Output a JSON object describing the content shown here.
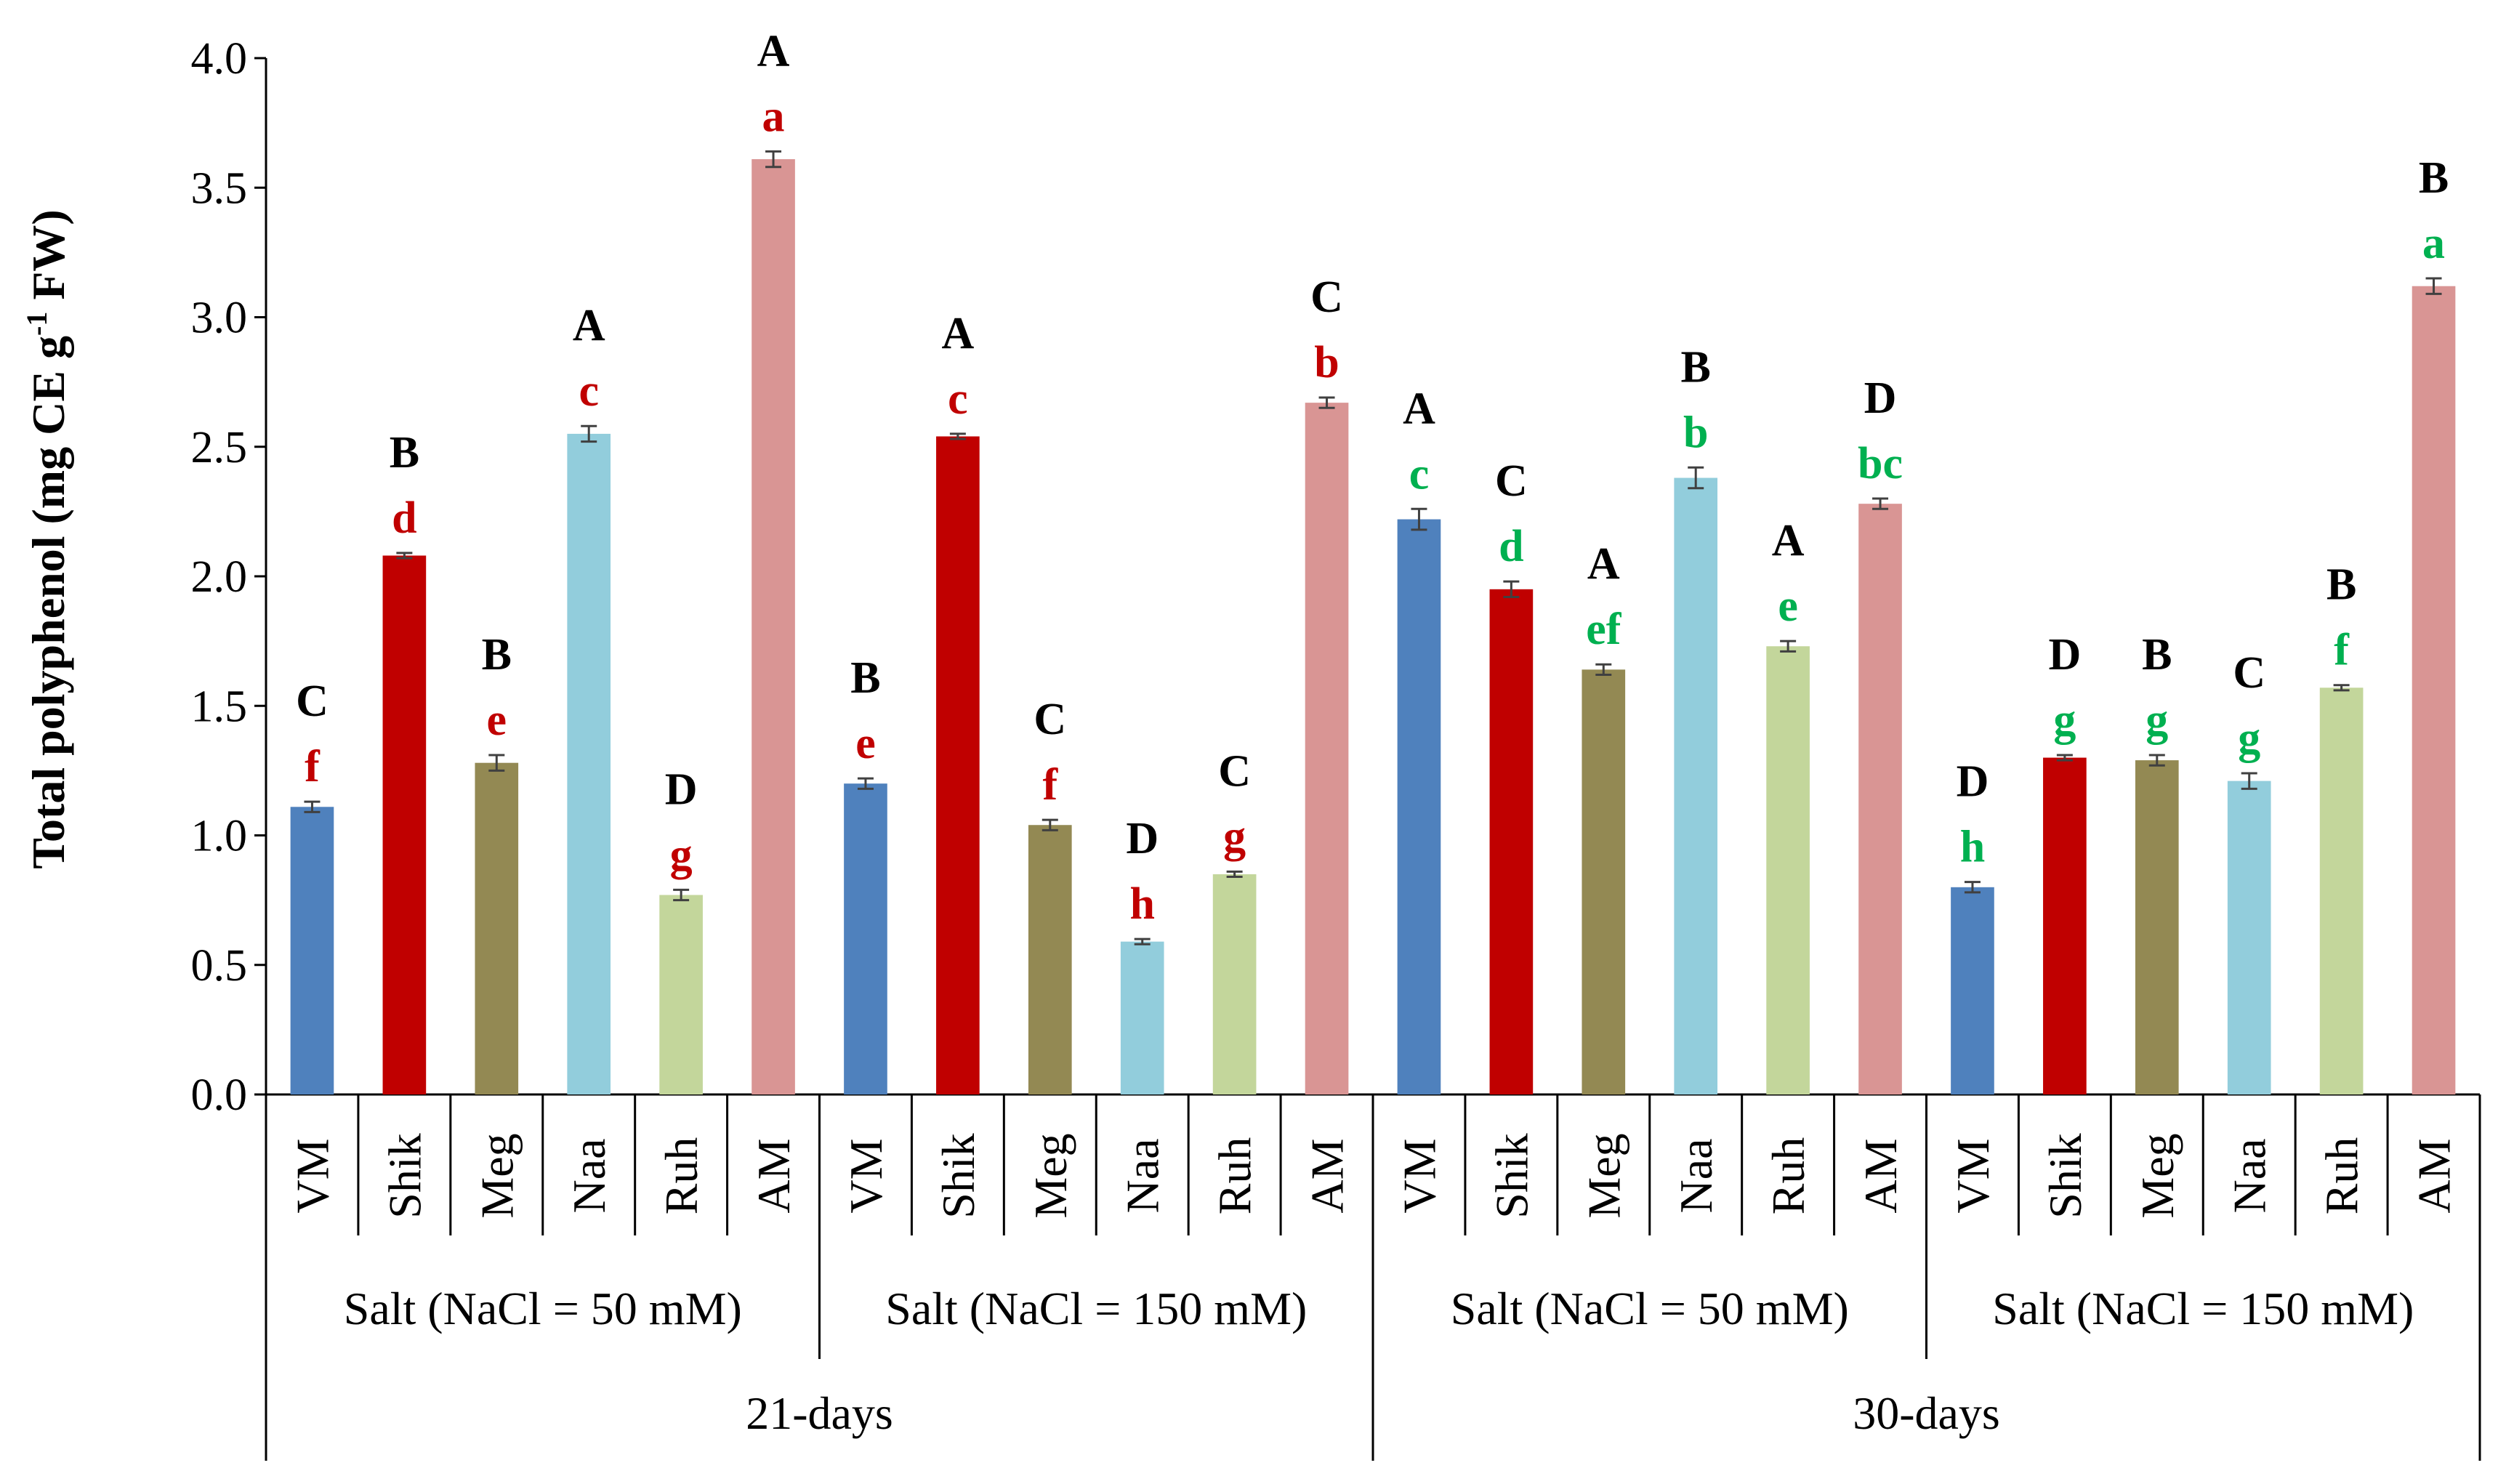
{
  "chart_data": {
    "type": "bar",
    "ylabel": "Total polyphenol (mg CE g",
    "ylabel_sup": "-1",
    "ylabel_tail": " FW)",
    "ylim": [
      0,
      4.0
    ],
    "yticks": [
      "0.0",
      "0.5",
      "1.0",
      "1.5",
      "2.0",
      "2.5",
      "3.0",
      "3.5",
      "4.0"
    ],
    "grid": false,
    "cultivar_colors": {
      "VM": "#4F81BD",
      "Shik": "#C00000",
      "Meg": "#938953",
      "Naa": "#92CDDC",
      "Ruh": "#C3D69B",
      "AM": "#D99594"
    },
    "letter_colors": {
      "21-days": "#C00000",
      "30-days": "#00B050"
    },
    "periods": [
      {
        "label": "21-days",
        "treatments": [
          {
            "label": "Salt  (NaCl = 50 mM)",
            "bars": [
              {
                "cultivar": "VM",
                "value": 1.11,
                "error": 0.02,
                "upper": "C",
                "lower": "f"
              },
              {
                "cultivar": "Shik",
                "value": 2.08,
                "error": 0.01,
                "upper": "B",
                "lower": "d"
              },
              {
                "cultivar": "Meg",
                "value": 1.28,
                "error": 0.03,
                "upper": "B",
                "lower": "e"
              },
              {
                "cultivar": "Naa",
                "value": 2.55,
                "error": 0.03,
                "upper": "A",
                "lower": "c"
              },
              {
                "cultivar": "Ruh",
                "value": 0.77,
                "error": 0.02,
                "upper": "D",
                "lower": "g"
              },
              {
                "cultivar": "AM",
                "value": 3.61,
                "error": 0.03,
                "upper": "A",
                "lower": "a"
              }
            ]
          },
          {
            "label": "Salt  (NaCl = 150 mM)",
            "bars": [
              {
                "cultivar": "VM",
                "value": 1.2,
                "error": 0.02,
                "upper": "B",
                "lower": "e"
              },
              {
                "cultivar": "Shik",
                "value": 2.54,
                "error": 0.01,
                "upper": "A",
                "lower": "c"
              },
              {
                "cultivar": "Meg",
                "value": 1.04,
                "error": 0.02,
                "upper": "C",
                "lower": "f"
              },
              {
                "cultivar": "Naa",
                "value": 0.59,
                "error": 0.01,
                "upper": "D",
                "lower": "h"
              },
              {
                "cultivar": "Ruh",
                "value": 0.85,
                "error": 0.01,
                "upper": "C",
                "lower": "g"
              },
              {
                "cultivar": "AM",
                "value": 2.67,
                "error": 0.02,
                "upper": "C",
                "lower": "b"
              }
            ]
          }
        ]
      },
      {
        "label": "30-days",
        "treatments": [
          {
            "label": "Salt  (NaCl = 50 mM)",
            "bars": [
              {
                "cultivar": "VM",
                "value": 2.22,
                "error": 0.04,
                "upper": "A",
                "lower": "c"
              },
              {
                "cultivar": "Shik",
                "value": 1.95,
                "error": 0.03,
                "upper": "C",
                "lower": "d"
              },
              {
                "cultivar": "Meg",
                "value": 1.64,
                "error": 0.02,
                "upper": "A",
                "lower": "ef"
              },
              {
                "cultivar": "Naa",
                "value": 2.38,
                "error": 0.04,
                "upper": "B",
                "lower": "b"
              },
              {
                "cultivar": "Ruh",
                "value": 1.73,
                "error": 0.02,
                "upper": "A",
                "lower": "e"
              },
              {
                "cultivar": "AM",
                "value": 2.28,
                "error": 0.02,
                "upper": "D",
                "lower": "bc"
              }
            ]
          },
          {
            "label": "Salt  (NaCl = 150 mM)",
            "bars": [
              {
                "cultivar": "VM",
                "value": 0.8,
                "error": 0.02,
                "upper": "D",
                "lower": "h"
              },
              {
                "cultivar": "Shik",
                "value": 1.3,
                "error": 0.01,
                "upper": "D",
                "lower": "g"
              },
              {
                "cultivar": "Meg",
                "value": 1.29,
                "error": 0.02,
                "upper": "B",
                "lower": "g"
              },
              {
                "cultivar": "Naa",
                "value": 1.21,
                "error": 0.03,
                "upper": "C",
                "lower": "g"
              },
              {
                "cultivar": "Ruh",
                "value": 1.57,
                "error": 0.01,
                "upper": "B",
                "lower": "f"
              },
              {
                "cultivar": "AM",
                "value": 3.12,
                "error": 0.03,
                "upper": "B",
                "lower": "a"
              }
            ]
          }
        ]
      }
    ]
  }
}
